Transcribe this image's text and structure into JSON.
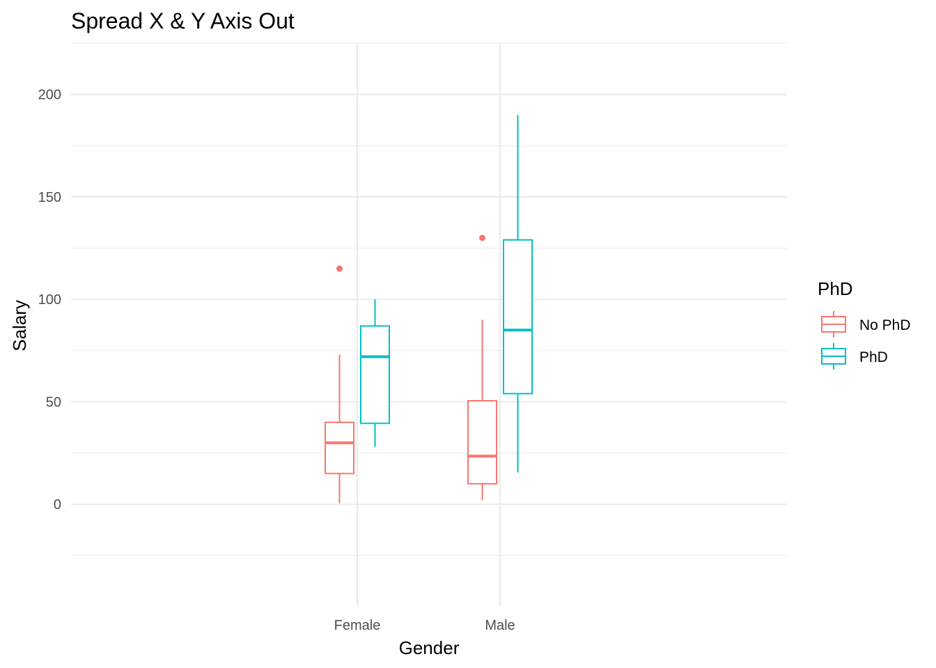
{
  "chart_data": {
    "type": "boxplot",
    "title": "Spread X & Y Axis Out",
    "xlabel": "Gender",
    "ylabel": "Salary",
    "categories": [
      "Female",
      "Male"
    ],
    "ylim": [
      -50,
      225
    ],
    "y_ticks": [
      0,
      50,
      100,
      150,
      200
    ],
    "y_tick_labels": [
      "0",
      "50",
      "100",
      "150",
      "200"
    ],
    "grid": true,
    "legend": {
      "title": "PhD",
      "position": "right"
    },
    "series": [
      {
        "name": "No PhD",
        "color": "#F8766D",
        "boxes": [
          {
            "category": "Female",
            "min": 0.5,
            "q1": 15,
            "median": 30,
            "q3": 40,
            "max": 73,
            "outliers": [
              115
            ]
          },
          {
            "category": "Male",
            "min": 2,
            "q1": 10,
            "median": 23.5,
            "q3": 50.5,
            "max": 90,
            "outliers": [
              130
            ]
          }
        ]
      },
      {
        "name": "PhD",
        "color": "#00BFC4",
        "boxes": [
          {
            "category": "Female",
            "min": 28,
            "q1": 39.5,
            "median": 72,
            "q3": 87,
            "max": 100,
            "outliers": []
          },
          {
            "category": "Male",
            "min": 15.5,
            "q1": 54,
            "median": 85,
            "q3": 129,
            "max": 190,
            "outliers": []
          }
        ]
      }
    ]
  }
}
